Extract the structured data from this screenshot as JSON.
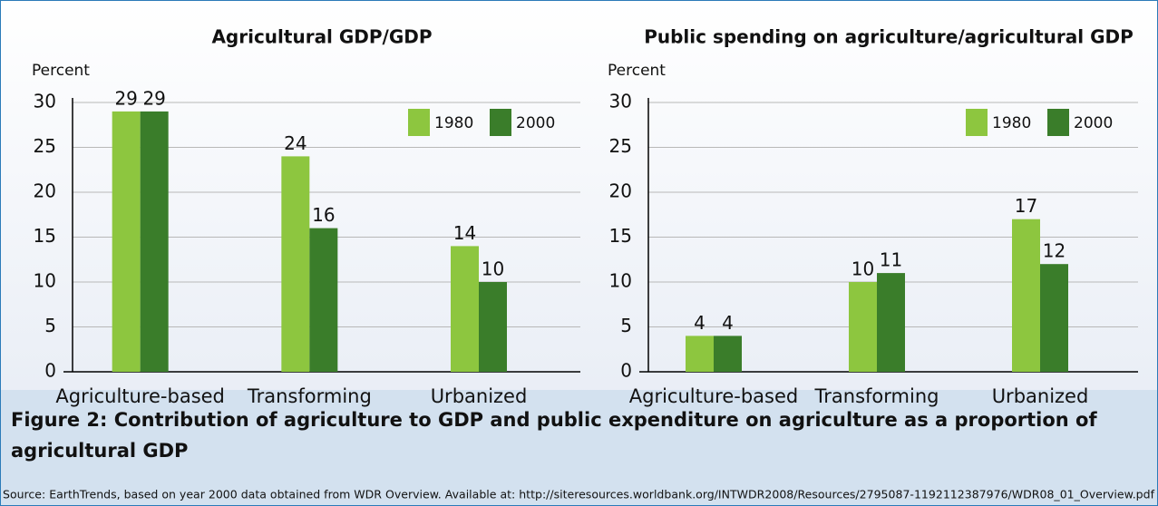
{
  "chart_data": [
    {
      "type": "bar",
      "title": "Agricultural GDP/GDP",
      "y_label": "Percent",
      "categories": [
        "Agriculture-based",
        "Transforming",
        "Urbanized"
      ],
      "series": [
        {
          "name": "1980",
          "color": "#8dc63f",
          "values": [
            29,
            24,
            14
          ]
        },
        {
          "name": "2000",
          "color": "#3a7d2a",
          "values": [
            29,
            16,
            10
          ]
        }
      ],
      "ylim": [
        0,
        30
      ],
      "yticks": [
        0,
        5,
        10,
        15,
        20,
        25,
        30
      ],
      "grid": true,
      "legend": "upper right"
    },
    {
      "type": "bar",
      "title": "Public spending on agriculture/agricultural GDP",
      "y_label": "Percent",
      "categories": [
        "Agriculture-based",
        "Transforming",
        "Urbanized"
      ],
      "series": [
        {
          "name": "1980",
          "color": "#8dc63f",
          "values": [
            4,
            10,
            17
          ]
        },
        {
          "name": "2000",
          "color": "#3a7d2a",
          "values": [
            4,
            11,
            12
          ]
        }
      ],
      "ylim": [
        0,
        30
      ],
      "yticks": [
        0,
        5,
        10,
        15,
        20,
        25,
        30
      ],
      "grid": true,
      "legend": "upper right"
    }
  ],
  "caption": "Figure 2: Contribution of agriculture to GDP and public expenditure on agriculture as a proportion of agricultural GDP",
  "source": "Source: EarthTrends, based on year 2000 data obtained from WDR Overview. Available at: http://siteresources.worldbank.org/INTWDR2008/Resources/2795087-1192112387976/WDR08_01_Overview.pdf"
}
